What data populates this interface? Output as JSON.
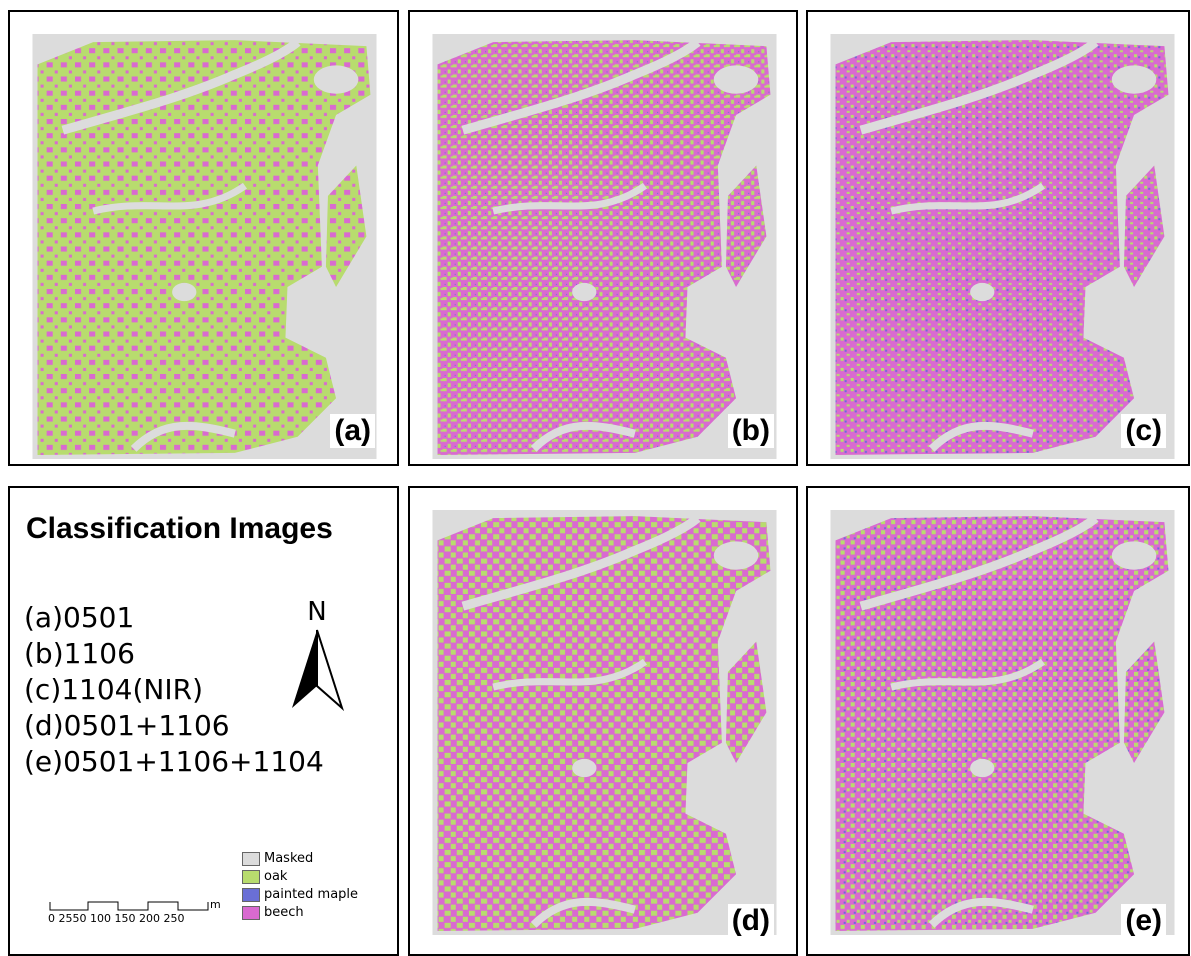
{
  "panels": [
    {
      "label": "(a)"
    },
    {
      "label": "(b)"
    },
    {
      "label": "(c)"
    },
    {
      "label": "(d)"
    },
    {
      "label": "(e)"
    }
  ],
  "legend_panel": {
    "title": "Classification Images",
    "items": [
      "(a)0501",
      "(b)1106",
      "(c)1104(NIR)",
      "(d)0501+1106",
      "(e)0501+1106+1104"
    ],
    "north": "N",
    "legend": [
      "Masked",
      "oak",
      "painted maple",
      "beech"
    ],
    "scale": "0 2550  100 150 200 250",
    "scale_unit": "m"
  }
}
